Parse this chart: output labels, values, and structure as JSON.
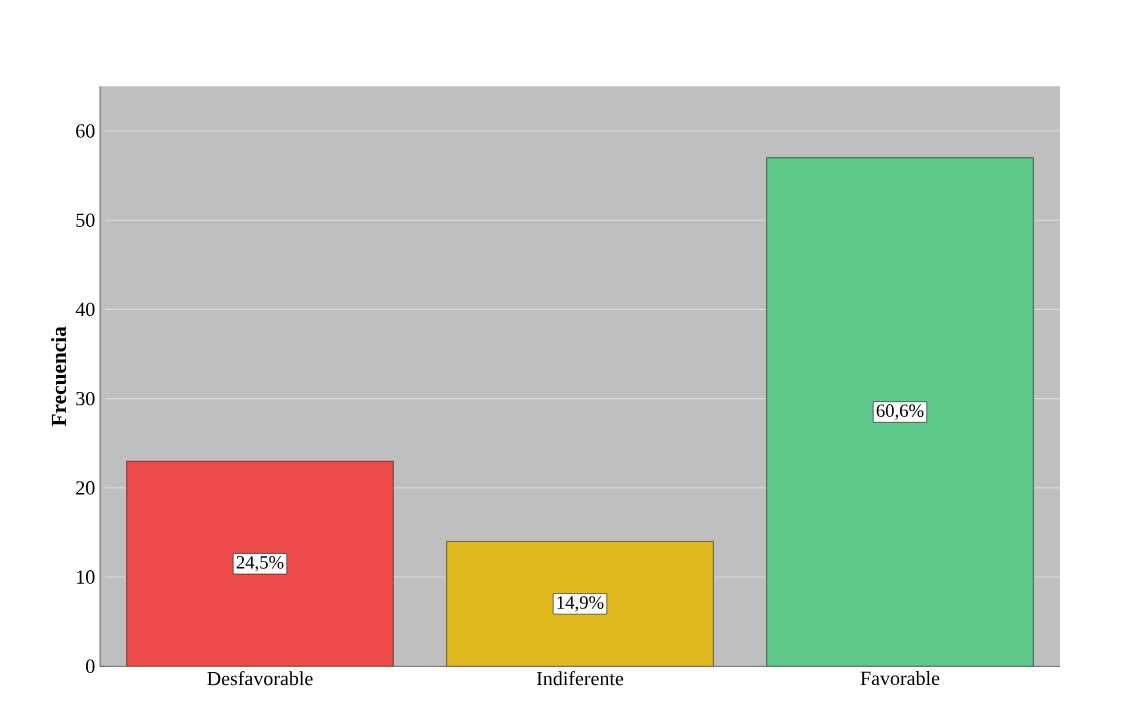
{
  "chart_data": {
    "type": "bar",
    "ylabel": "Frecuencia",
    "categories": [
      "Desfavorable",
      "Indiferente",
      "Favorable"
    ],
    "values": [
      23,
      14,
      57
    ],
    "colors": [
      "#ee4b4b",
      "#e0b91e",
      "#5ec98a"
    ],
    "annotations": [
      "24,5%",
      "14,9%",
      "60,6%"
    ],
    "ylim": [
      0,
      65
    ],
    "yticks": [
      0,
      10,
      20,
      30,
      40,
      50,
      60
    ],
    "grid": "y"
  }
}
